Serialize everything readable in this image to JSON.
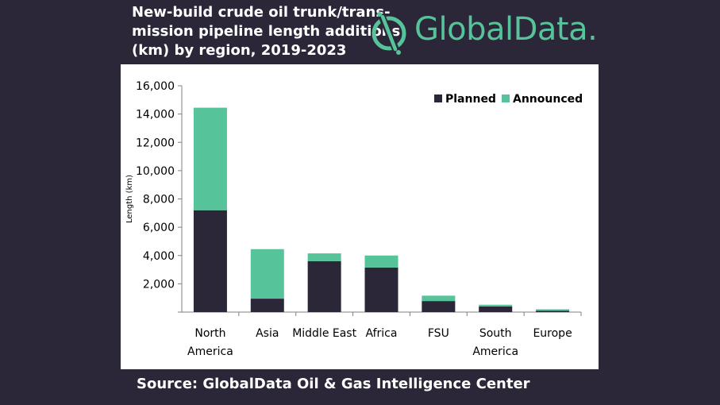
{
  "title_lines": [
    "New-build crude oil trunk/trans-",
    "mission pipeline length additions",
    "(km) by region, 2019-2023"
  ],
  "logo": {
    "text": "GlobalData."
  },
  "source": "Source:  GlobalData Oil & Gas Intelligence Center",
  "colors": {
    "planned": "#2b2739",
    "announced": "#57c39a",
    "background": "#2b2739"
  },
  "chart_data": {
    "type": "bar",
    "stacked": true,
    "categories": [
      [
        "North",
        "America"
      ],
      [
        "Asia"
      ],
      [
        "Middle East"
      ],
      [
        "Africa"
      ],
      [
        "FSU"
      ],
      [
        "South",
        "America"
      ],
      [
        "Europe"
      ]
    ],
    "series": [
      {
        "name": "Planned",
        "values": [
          7200,
          950,
          3600,
          3150,
          780,
          400,
          100
        ]
      },
      {
        "name": "Announced",
        "values": [
          7250,
          3500,
          550,
          850,
          380,
          120,
          100
        ]
      }
    ],
    "ylabel": "Length (km)",
    "ylim": [
      0,
      16000
    ],
    "yticks": [
      "16,000",
      "14,000",
      "12,000",
      "10,000",
      "8,000",
      "6,000",
      "4,000",
      "2,000"
    ],
    "ytick_values": [
      16000,
      14000,
      12000,
      10000,
      8000,
      6000,
      4000,
      2000
    ],
    "legend_position": "top-right",
    "grid": false
  }
}
